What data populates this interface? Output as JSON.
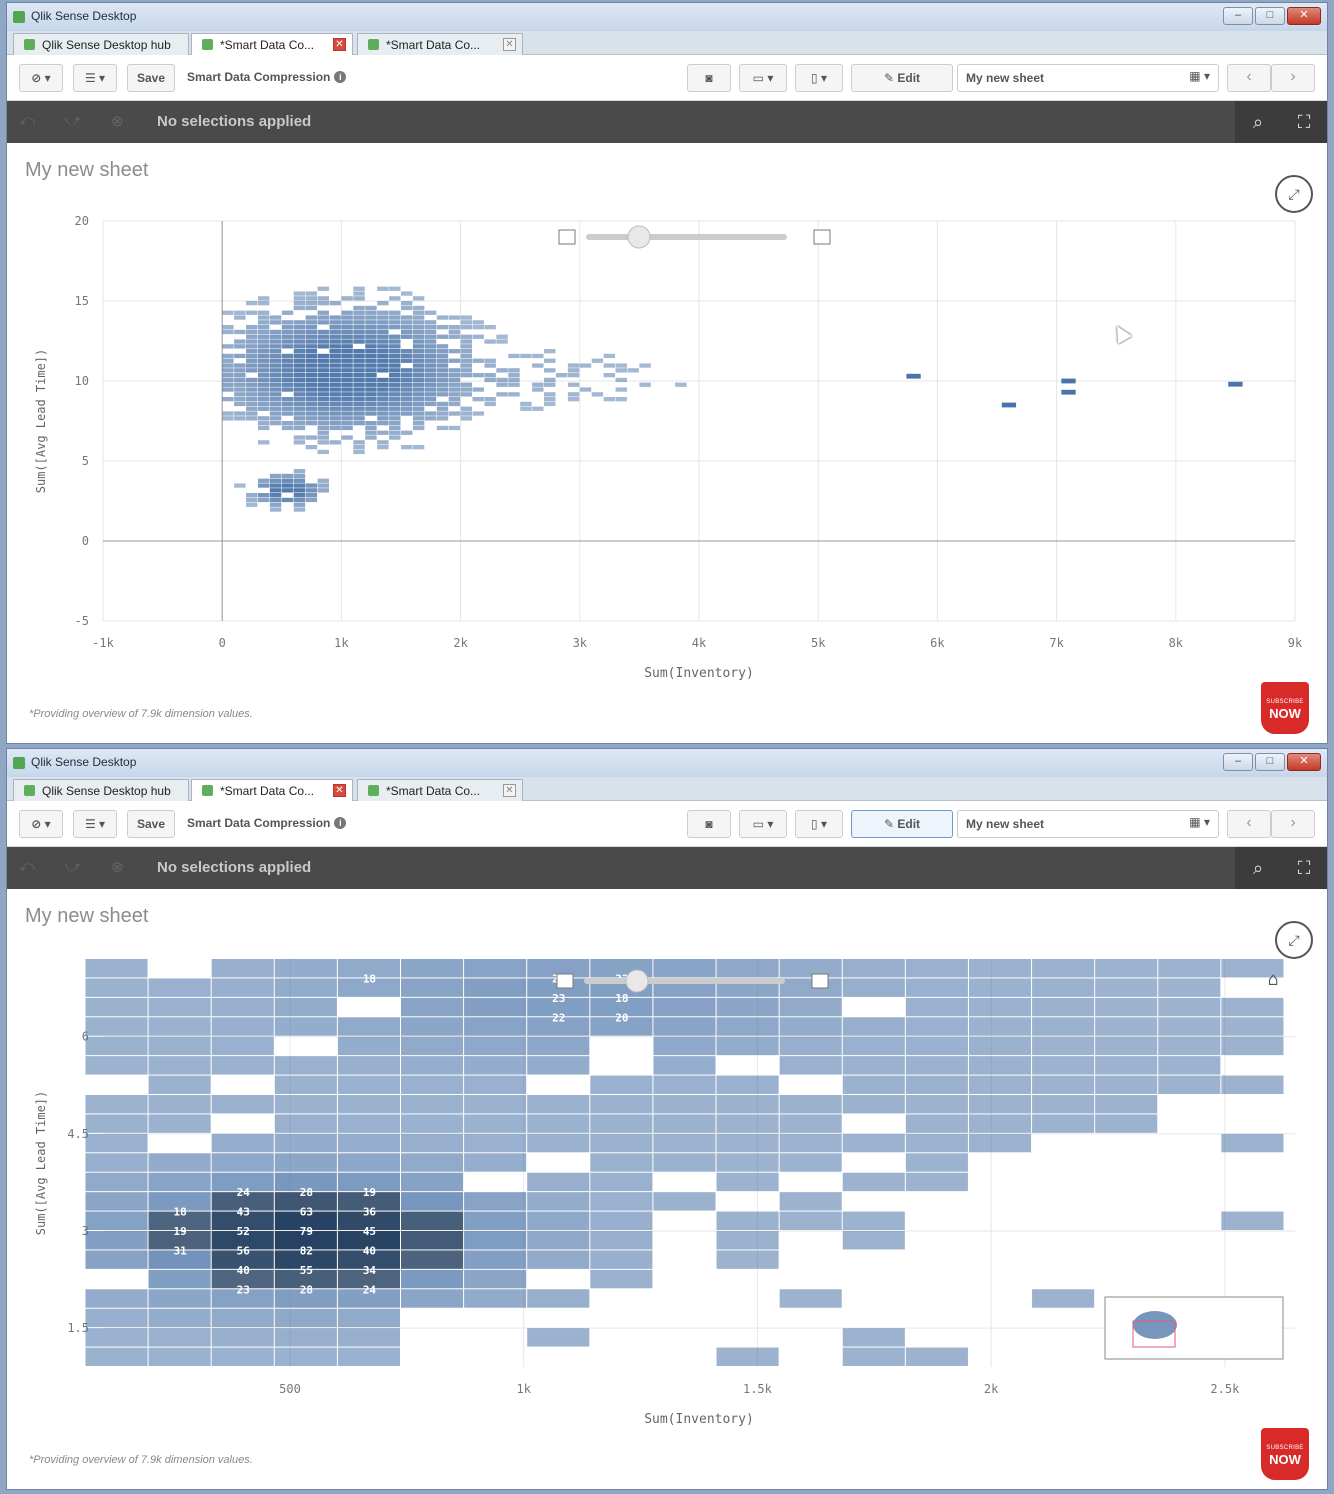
{
  "window": {
    "title": "Qlik Sense Desktop",
    "controls": {
      "minimize": "–",
      "maximize": "□",
      "close": "✕"
    },
    "tabs": [
      {
        "label": "Qlik Sense Desktop hub",
        "close": ""
      },
      {
        "label": "*Smart Data Co...",
        "close": "✕"
      },
      {
        "label": "*Smart Data Co...",
        "close": "✕"
      }
    ]
  },
  "toolbar": {
    "save_label": "Save",
    "app_name": "Smart Data Compression",
    "info_icon": "i",
    "edit_label": "Edit",
    "sheet_name": "My new sheet",
    "prev_icon": "‹",
    "next_icon": "›"
  },
  "selections": {
    "text": "No selections applied"
  },
  "sheet": {
    "title": "My new sheet",
    "footnote": "*Providing overview of 7.9k dimension values.",
    "badge_top": "SUBSCRIBE",
    "badge_text": "NOW"
  },
  "colors": {
    "bin": "#4a73a8",
    "selbar": "#4a4a4a",
    "badge": "#d92a2a"
  },
  "chart_data": [
    {
      "type": "heatmap",
      "title": "",
      "xlabel": "Sum(Inventory)",
      "ylabel": "Sum([Avg Lead Time])",
      "xlim": [
        -1000,
        9000
      ],
      "ylim": [
        -5,
        20
      ],
      "x_ticks": [
        "-1k",
        "0",
        "1k",
        "2k",
        "3k",
        "4k",
        "5k",
        "6k",
        "7k",
        "8k",
        "9k"
      ],
      "y_ticks": [
        "20",
        "15",
        "10",
        "5",
        "0",
        "-5"
      ],
      "density_peaks": [
        {
          "x": 1000,
          "y": 10.5,
          "weight": 1.0
        },
        {
          "x": 500,
          "y": 3,
          "weight": 1.0
        }
      ],
      "outliers": [
        {
          "x": 5800,
          "y": 10.3
        },
        {
          "x": 6600,
          "y": 8.5
        },
        {
          "x": 7100,
          "y": 10
        },
        {
          "x": 7100,
          "y": 9.3
        },
        {
          "x": 8500,
          "y": 9.8
        }
      ]
    },
    {
      "type": "heatmap",
      "title": "",
      "xlabel": "Sum(Inventory)",
      "ylabel": "Sum([Avg Lead Time])",
      "xlim": [
        100,
        2650
      ],
      "ylim": [
        0.9,
        7.2
      ],
      "x_ticks": [
        "500",
        "1k",
        "1.5k",
        "2k",
        "2.5k"
      ],
      "y_ticks": [
        "6",
        "4.5",
        "3",
        "1.5"
      ],
      "labeled_cells": [
        {
          "x": 400,
          "y": 3.6,
          "count": 24
        },
        {
          "x": 535,
          "y": 3.6,
          "count": 28
        },
        {
          "x": 670,
          "y": 3.6,
          "count": 19
        },
        {
          "x": 265,
          "y": 3.3,
          "count": 18
        },
        {
          "x": 400,
          "y": 3.3,
          "count": 43
        },
        {
          "x": 535,
          "y": 3.3,
          "count": 63
        },
        {
          "x": 670,
          "y": 3.3,
          "count": 36
        },
        {
          "x": 265,
          "y": 3.0,
          "count": 19
        },
        {
          "x": 400,
          "y": 3.0,
          "count": 52
        },
        {
          "x": 535,
          "y": 3.0,
          "count": 79
        },
        {
          "x": 670,
          "y": 3.0,
          "count": 45
        },
        {
          "x": 265,
          "y": 2.7,
          "count": 31
        },
        {
          "x": 400,
          "y": 2.7,
          "count": 56
        },
        {
          "x": 535,
          "y": 2.7,
          "count": 82
        },
        {
          "x": 670,
          "y": 2.7,
          "count": 40
        },
        {
          "x": 400,
          "y": 2.4,
          "count": 40
        },
        {
          "x": 535,
          "y": 2.4,
          "count": 55
        },
        {
          "x": 670,
          "y": 2.4,
          "count": 34
        },
        {
          "x": 400,
          "y": 2.1,
          "count": 23
        },
        {
          "x": 535,
          "y": 2.1,
          "count": 28
        },
        {
          "x": 670,
          "y": 2.1,
          "count": 24
        },
        {
          "x": 1075,
          "y": 6.9,
          "count": 28
        },
        {
          "x": 1210,
          "y": 6.9,
          "count": 22
        },
        {
          "x": 1075,
          "y": 6.6,
          "count": 23
        },
        {
          "x": 1210,
          "y": 6.6,
          "count": 18
        },
        {
          "x": 1075,
          "y": 6.3,
          "count": 22
        },
        {
          "x": 1210,
          "y": 6.3,
          "count": 20
        },
        {
          "x": 670,
          "y": 6.9,
          "count": 18
        }
      ]
    }
  ]
}
